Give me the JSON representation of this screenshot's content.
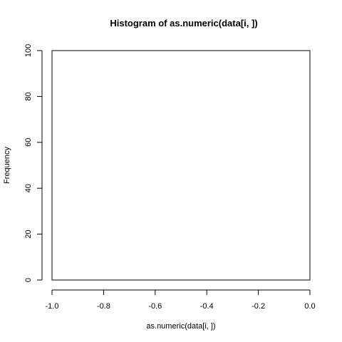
{
  "chart_data": {
    "type": "bar",
    "title": "Histogram of as.numeric(data[i, ])",
    "xlabel": "as.numeric(data[i, ])",
    "ylabel": "Frequency",
    "xlim": [
      -1.0,
      0.0
    ],
    "ylim": [
      0,
      100
    ],
    "x_ticks": [
      -1.0,
      -0.8,
      -0.6,
      -0.4,
      -0.2,
      0.0
    ],
    "x_tick_labels": [
      "-1.0",
      "-0.8",
      "-0.6",
      "-0.4",
      "-0.2",
      "0.0"
    ],
    "y_ticks": [
      0,
      20,
      40,
      60,
      80,
      100
    ],
    "y_tick_labels": [
      "0",
      "20",
      "40",
      "60",
      "80",
      "100"
    ],
    "bins": [],
    "grid": false,
    "legend": "none"
  }
}
